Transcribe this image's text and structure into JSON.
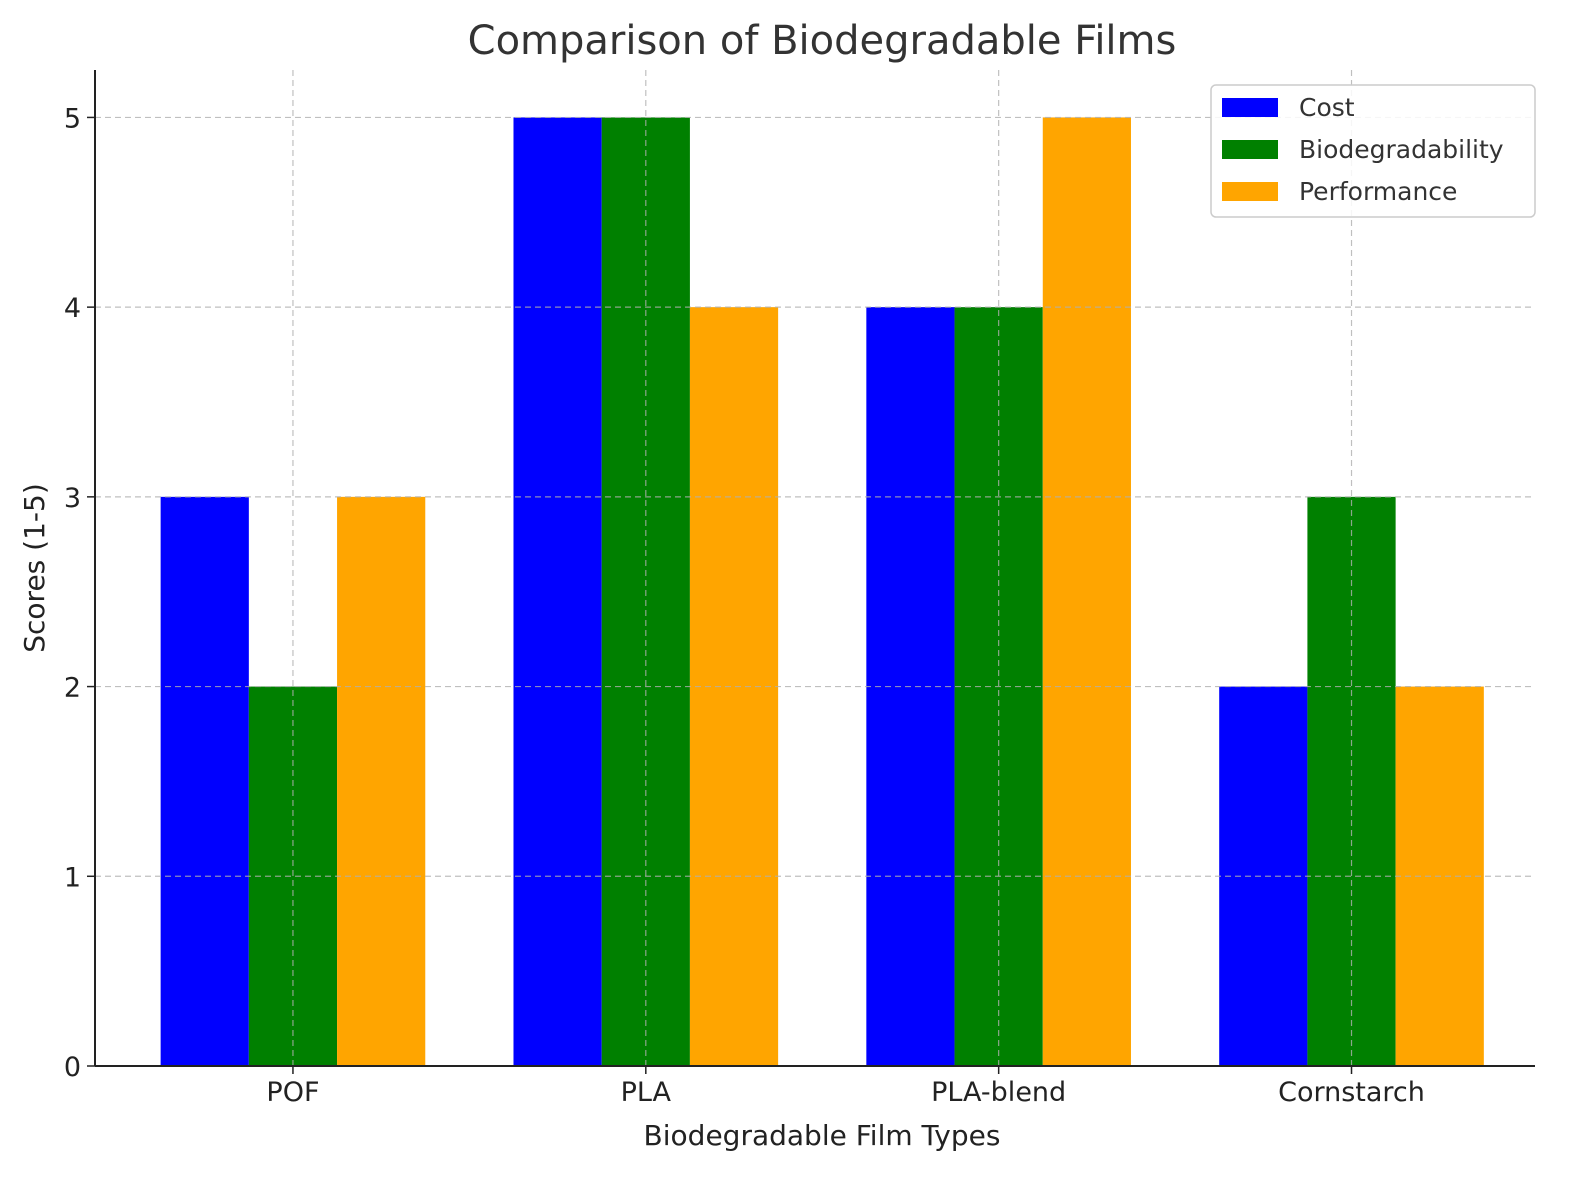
{
  "chart_data": {
    "type": "bar",
    "title": "Comparison of Biodegradable Films",
    "xlabel": "Biodegradable Film Types",
    "ylabel": "Scores (1-5)",
    "categories": [
      "POF",
      "PLA",
      "PLA-blend",
      "Cornstarch"
    ],
    "series": [
      {
        "name": "Cost",
        "values": [
          3,
          5,
          4,
          2
        ],
        "color": "#0000ff"
      },
      {
        "name": "Biodegradability",
        "values": [
          2,
          5,
          4,
          3
        ],
        "color": "#008000"
      },
      {
        "name": "Performance",
        "values": [
          3,
          4,
          5,
          2
        ],
        "color": "#ffa500"
      }
    ],
    "yticks": [
      "0",
      "1",
      "2",
      "3",
      "4",
      "5"
    ],
    "ylim": [
      0,
      5.25
    ],
    "grid": true,
    "legend": "top-right"
  }
}
